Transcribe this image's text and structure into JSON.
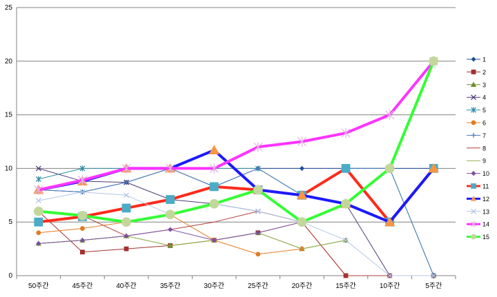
{
  "chart_data": {
    "type": "line",
    "title": "",
    "xlabel": "",
    "ylabel": "",
    "ylim": [
      0,
      25
    ],
    "yticks": [
      0,
      5,
      10,
      15,
      20,
      25
    ],
    "grid": "horizontal",
    "legend": "right",
    "categories": [
      "50주간",
      "45주간",
      "40주간",
      "35주간",
      "30주간",
      "25주간",
      "20주간",
      "15주간",
      "10주간",
      "5주간"
    ],
    "series": [
      {
        "name": "1",
        "color": "#1f4e9a",
        "width": 1,
        "marker": "diamond",
        "msize": 3,
        "values": [
          8,
          7.8,
          8.7,
          10,
          8.3,
          10,
          10,
          10,
          10,
          10
        ]
      },
      {
        "name": "2",
        "color": "#a3302d",
        "width": 1,
        "marker": "square",
        "msize": 3,
        "values": [
          6,
          2.2,
          2.5,
          2.8,
          3.3,
          4,
          5,
          0,
          0,
          0
        ]
      },
      {
        "name": "3",
        "color": "#6f8c2e",
        "width": 1,
        "marker": "triangle",
        "msize": 3.5,
        "values": [
          3,
          3.3,
          3.7,
          2.8,
          3.3,
          4,
          2.5,
          3.3,
          null,
          null
        ]
      },
      {
        "name": "4",
        "color": "#4e3a78",
        "width": 1,
        "marker": "x",
        "msize": 3.5,
        "values": [
          10,
          8.8,
          8.7,
          7.1,
          6.7,
          6,
          5,
          6.7,
          0,
          null
        ]
      },
      {
        "name": "5",
        "color": "#2e8ba6",
        "width": 1,
        "marker": "star",
        "msize": 3.5,
        "values": [
          9,
          10,
          10,
          10,
          10,
          10,
          7.5,
          10,
          10,
          0
        ]
      },
      {
        "name": "6",
        "color": "#e07b22",
        "width": 1,
        "marker": "circle",
        "msize": 3,
        "values": [
          4,
          4.4,
          5,
          5.7,
          3.3,
          2,
          2.5,
          null,
          null,
          null
        ]
      },
      {
        "name": "7",
        "color": "#4a7bb7",
        "width": 1,
        "marker": "plus",
        "msize": 3.5,
        "values": [
          8,
          7.8,
          8.7,
          10,
          8.3,
          10,
          7.5,
          10,
          10,
          0
        ]
      },
      {
        "name": "8",
        "color": "#b23b37",
        "width": 1,
        "marker": "none",
        "msize": 0,
        "values": [
          6,
          5.6,
          3.7,
          4.3,
          5,
          6,
          5,
          0,
          0,
          0
        ]
      },
      {
        "name": "9",
        "color": "#93b04a",
        "width": 1,
        "marker": "none",
        "msize": 0,
        "values": [
          3,
          3.3,
          3.7,
          2.8,
          3.3,
          4,
          2.5,
          3.3,
          null,
          null
        ]
      },
      {
        "name": "10",
        "color": "#7a4fa3",
        "width": 1,
        "marker": "diamond",
        "msize": 3,
        "values": [
          3,
          3.3,
          3.7,
          4.3,
          3.3,
          4,
          5,
          6.7,
          5,
          null
        ]
      },
      {
        "name": "11",
        "color": "#ff2a1a",
        "width": 4,
        "marker": "square",
        "msize": 6,
        "mcolor": "#4aacc6",
        "values": [
          5,
          5.5,
          6.3,
          7.1,
          8.3,
          8,
          7.5,
          10,
          5,
          10
        ]
      },
      {
        "name": "12",
        "color": "#1a1aff",
        "width": 4,
        "marker": "triangle",
        "msize": 7,
        "mcolor": "#f79646",
        "values": [
          8,
          8.8,
          10,
          10,
          11.7,
          8,
          7.5,
          6.7,
          5,
          10
        ]
      },
      {
        "name": "13",
        "color": "#b4c6e7",
        "width": 1,
        "marker": "x",
        "msize": 3.5,
        "values": [
          7,
          7.8,
          7.5,
          5.7,
          6.7,
          6,
          5,
          3.3,
          0,
          0
        ]
      },
      {
        "name": "14",
        "color": "#ff33ff",
        "width": 4,
        "marker": "star",
        "msize": 6,
        "mcolor": "#e6b3e6",
        "values": [
          8,
          8.9,
          10,
          10,
          10,
          12,
          12.5,
          13.3,
          15,
          20
        ]
      },
      {
        "name": "15",
        "color": "#33ff33",
        "width": 4,
        "marker": "circle",
        "msize": 6.5,
        "mcolor": "#c4d79b",
        "values": [
          6,
          5.6,
          5,
          5.7,
          6.7,
          8,
          5,
          6.7,
          10,
          20
        ]
      }
    ]
  }
}
